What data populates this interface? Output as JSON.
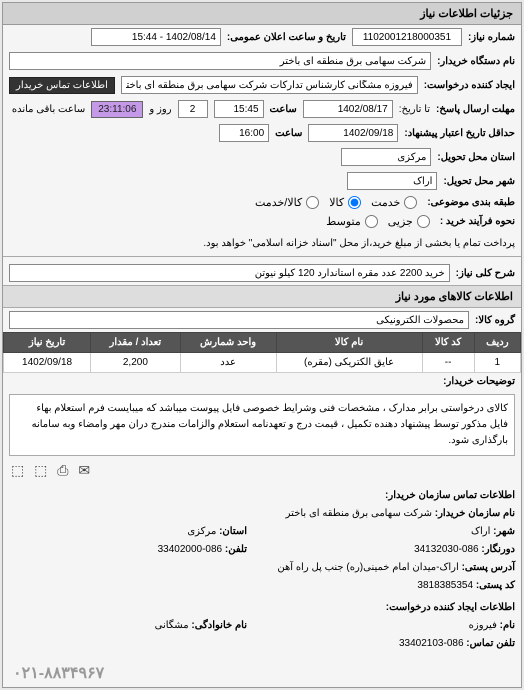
{
  "panel_title": "جزئیات اطلاعات نیاز",
  "header": {
    "req_no_label": "شماره نیاز:",
    "req_no": "1102001218000351",
    "announce_label": "تاریخ و ساعت اعلان عمومی:",
    "announce_value": "1402/08/14 - 15:44"
  },
  "buyer": {
    "name_label": "نام دستگاه خریدار:",
    "name_value": "شرکت سهامی برق منطقه ای باختر",
    "creator_label": "ایجاد کننده درخواست:",
    "creator_value": "فیروزه مشگانی کارشناس تدارکات شرکت سهامی برق منطقه ای باختر",
    "contact_btn": "اطلاعات تماس خریدار"
  },
  "deadlines": {
    "resp_label": "مهلت ارسال پاسخ:",
    "resp_date": "1402/08/17",
    "resp_time_label": "ساعت",
    "resp_time": "15:45",
    "days": "2",
    "days_label": "روز و",
    "countdown": "23:11:06",
    "remain_label": "ساعت باقی مانده",
    "min_valid_label": "حداقل تاریخ اعتبار پیشنهاد:",
    "valid_date": "1402/09/18",
    "valid_time": "16:00"
  },
  "location": {
    "province_label": "استان محل تحویل:",
    "province": "مرکزی",
    "city_label": "شهر محل تحویل:",
    "city": "اراک"
  },
  "category": {
    "label": "طبقه بندی موضوعی:",
    "opts": {
      "service": "خدمت",
      "goods": "کالا",
      "both": "کالا/خدمت"
    },
    "selected": "goods"
  },
  "payment": {
    "label": "نحوه فرآیند خرید :",
    "opts": {
      "partial": "جزیی",
      "medium": "متوسط"
    },
    "note": "پرداخت تمام یا بخشی از مبلغ خرید،از محل \"اسناد خزانه اسلامی\" خواهد بود."
  },
  "need": {
    "title_label": "شرح کلی نیاز:",
    "title_value": "خرید 2200 عدد مقره استاندارد 120 کیلو نیوتن"
  },
  "goods_section": "اطلاعات کالاهای مورد نیاز",
  "group": {
    "label": "گروه کالا:",
    "value": "محصولات الکترونیکی"
  },
  "table": {
    "headers": [
      "ردیف",
      "کد کالا",
      "نام کالا",
      "واحد شمارش",
      "تعداد / مقدار",
      "تاریخ نیاز"
    ],
    "rows": [
      [
        "1",
        "--",
        "عایق الکتریکی (مقره)",
        "عدد",
        "2,200",
        "1402/09/18"
      ]
    ]
  },
  "description": {
    "label": "توضیحات خریدار:",
    "text": "کالای درخواستی برابر مدارک ، مشخصات فنی وشرایط خصوصی فایل پیوست میباشد که میبایست فرم استعلام بهاء فایل مذکور توسط پیشنهاد دهنده تکمیل ، قیمت درج و تعهدنامه استعلام والزامات مندرج دران مهر وامضاء وبه سامانه بارگذاری شود."
  },
  "share_icons": "✉ ⎙ ⬚ ⬚",
  "contact": {
    "section_title": "اطلاعات تماس سازمان خریدار:",
    "org_label": "نام سازمان خریدار:",
    "org": "شرکت سهامی برق منطقه ای باختر",
    "city_label": "شهر:",
    "city": "اراک",
    "province_label": "استان:",
    "province": "مرکزی",
    "fax_label": "دورنگار:",
    "fax": "086-34132030",
    "phone_label": "تلفن:",
    "phone": "086-33402000",
    "address_label": "آدرس پستی:",
    "address": "اراک-میدان امام خمینی(ره) جنب پل راه آهن",
    "postal_label": "کد پستی:",
    "postal": "3818385354",
    "creator_section": "اطلاعات ایجاد کننده درخواست:",
    "cname_label": "نام:",
    "cname": "فیروزه",
    "clast_label": "نام خانوادگی:",
    "clast": "مشگانی",
    "cphone_label": "تلفن تماس:",
    "cphone": "086-33402103"
  },
  "footer_phone": "۰۲۱-۸۸۳۴۹۶۷"
}
